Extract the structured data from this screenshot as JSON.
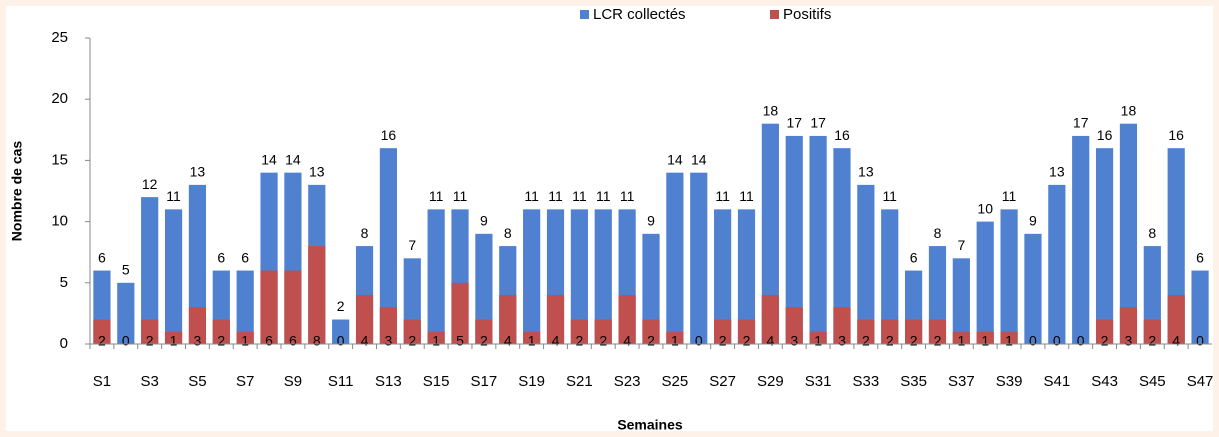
{
  "chart_data": {
    "type": "bar",
    "barmode": "overlay",
    "x_label": "Semaines",
    "y_label": "Nombre de cas",
    "categories": [
      "S1",
      null,
      "S3",
      null,
      "S5",
      null,
      "S7",
      null,
      "S9",
      null,
      "S11",
      null,
      "S13",
      null,
      "S15",
      null,
      "S17",
      null,
      "S19",
      null,
      "S21",
      null,
      "S23",
      null,
      "S25",
      null,
      "S27",
      null,
      "S29",
      null,
      "S31",
      null,
      "S33",
      null,
      "S35",
      null,
      "S37",
      null,
      "S39",
      null,
      "S41",
      null,
      "S43",
      null,
      "S45",
      null,
      "S47"
    ],
    "series": [
      {
        "name": "LCR collectés",
        "color": "#4f81d0",
        "values": [
          6,
          5,
          12,
          11,
          13,
          6,
          6,
          14,
          14,
          13,
          2,
          8,
          16,
          7,
          11,
          11,
          9,
          8,
          11,
          11,
          11,
          11,
          11,
          9,
          14,
          14,
          11,
          11,
          18,
          17,
          17,
          16,
          13,
          11,
          6,
          8,
          7,
          10,
          11,
          9,
          13,
          17,
          16,
          18,
          8,
          16,
          6
        ]
      },
      {
        "name": "Positifs",
        "color": "#c0504d",
        "values": [
          2,
          0,
          2,
          1,
          3,
          2,
          1,
          6,
          6,
          8,
          0,
          4,
          3,
          2,
          1,
          5,
          2,
          4,
          1,
          4,
          2,
          2,
          4,
          2,
          1,
          0,
          2,
          2,
          4,
          3,
          1,
          3,
          2,
          2,
          2,
          2,
          1,
          1,
          1,
          0,
          0,
          0,
          2,
          3,
          2,
          4,
          0
        ]
      }
    ],
    "ylim": [
      0,
      25
    ],
    "yticks": [
      0,
      5,
      10,
      15,
      20,
      25
    ],
    "legend": "top"
  }
}
